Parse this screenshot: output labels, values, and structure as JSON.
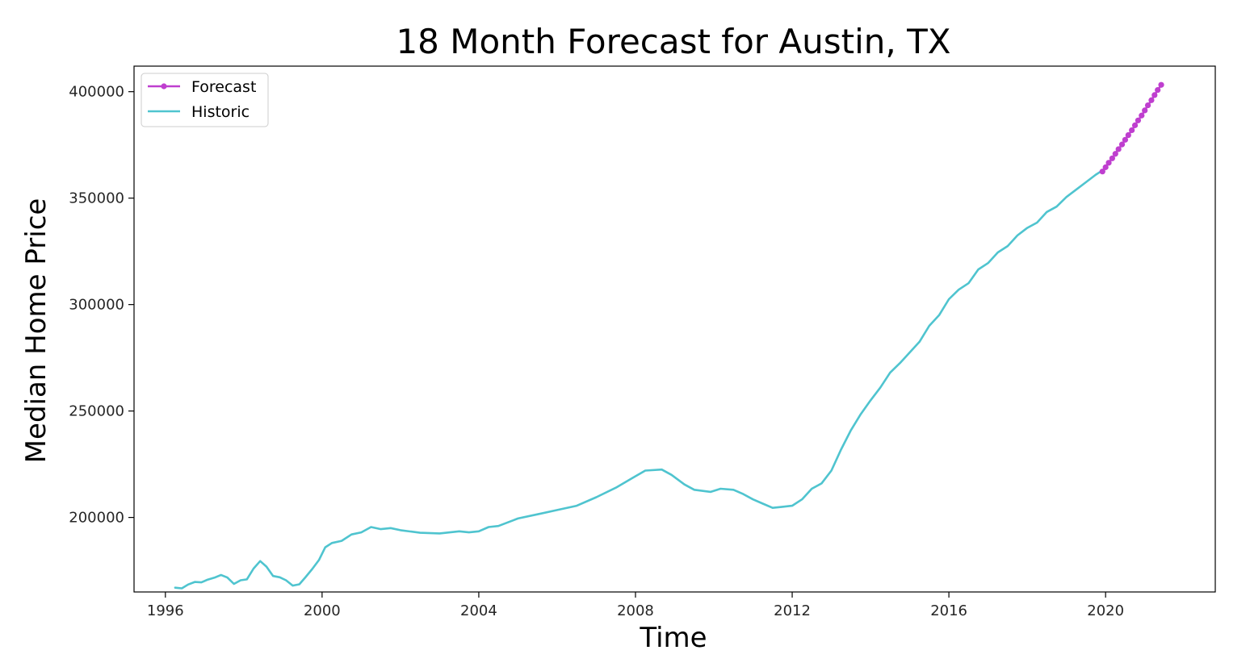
{
  "chart_data": {
    "type": "line",
    "title": "18 Month Forecast for Austin, TX",
    "xlabel": "Time",
    "ylabel": "Median Home Price",
    "xlim": [
      1995.2,
      2022.8
    ],
    "ylim": [
      165000,
      412000
    ],
    "x_ticks": [
      1996,
      2000,
      2004,
      2008,
      2012,
      2016,
      2020
    ],
    "y_ticks": [
      200000,
      250000,
      300000,
      350000,
      400000
    ],
    "grid": false,
    "legend_position": "top-left",
    "series": [
      {
        "name": "Forecast",
        "color": "#bf3fcf",
        "marker": "point",
        "x": [
          2019.92,
          2020.0,
          2020.08,
          2020.17,
          2020.25,
          2020.33,
          2020.42,
          2020.5,
          2020.58,
          2020.67,
          2020.75,
          2020.83,
          2020.92,
          2021.0,
          2021.08,
          2021.17,
          2021.25,
          2021.33,
          2021.42
        ],
        "y": [
          362500,
          364500,
          366600,
          368700,
          370800,
          373000,
          375200,
          377400,
          379600,
          381900,
          384200,
          386500,
          388800,
          391200,
          393600,
          396000,
          398400,
          400800,
          403200
        ]
      },
      {
        "name": "Historic",
        "color": "#4fc4cf",
        "marker": "none",
        "x": [
          1996.25,
          1996.42,
          1996.58,
          1996.75,
          1996.92,
          1997.08,
          1997.25,
          1997.42,
          1997.58,
          1997.75,
          1997.92,
          1998.08,
          1998.25,
          1998.42,
          1998.58,
          1998.75,
          1998.92,
          1999.08,
          1999.25,
          1999.42,
          1999.58,
          1999.75,
          1999.92,
          2000.08,
          2000.25,
          2000.5,
          2000.75,
          2001.0,
          2001.25,
          2001.5,
          2001.75,
          2002.0,
          2002.5,
          2003.0,
          2003.5,
          2003.75,
          2004.0,
          2004.25,
          2004.5,
          2005.0,
          2005.5,
          2006.0,
          2006.5,
          2007.0,
          2007.5,
          2007.92,
          2008.25,
          2008.67,
          2008.92,
          2009.25,
          2009.5,
          2009.92,
          2010.17,
          2010.5,
          2010.75,
          2011.0,
          2011.25,
          2011.5,
          2011.75,
          2012.0,
          2012.25,
          2012.5,
          2012.75,
          2013.0,
          2013.25,
          2013.5,
          2013.75,
          2014.0,
          2014.25,
          2014.5,
          2014.75,
          2015.0,
          2015.25,
          2015.5,
          2015.75,
          2016.0,
          2016.25,
          2016.5,
          2016.75,
          2017.0,
          2017.25,
          2017.5,
          2017.75,
          2018.0,
          2018.25,
          2018.5,
          2018.75,
          2019.0,
          2019.25,
          2019.5,
          2019.75,
          2019.92
        ],
        "y": [
          167000,
          166700,
          168500,
          169700,
          169500,
          170800,
          171700,
          173000,
          171800,
          168800,
          170500,
          170900,
          176000,
          179500,
          176900,
          172500,
          171900,
          170500,
          168000,
          168600,
          172000,
          175800,
          180000,
          186000,
          188000,
          189000,
          192000,
          193000,
          195500,
          194500,
          195000,
          194000,
          192800,
          192500,
          193500,
          193000,
          193500,
          195500,
          196000,
          199500,
          201500,
          203500,
          205500,
          209500,
          214000,
          218500,
          222000,
          222500,
          220000,
          215500,
          213000,
          212000,
          213500,
          213000,
          211000,
          208500,
          206500,
          204500,
          205000,
          205500,
          208500,
          213500,
          216000,
          222000,
          232000,
          241000,
          248500,
          255000,
          261000,
          268000,
          272500,
          277500,
          282500,
          290000,
          295000,
          302500,
          307000,
          310000,
          316500,
          319500,
          324500,
          327500,
          332500,
          336000,
          338500,
          343500,
          346000,
          350500,
          354000,
          357500,
          361000,
          363000
        ]
      }
    ]
  }
}
